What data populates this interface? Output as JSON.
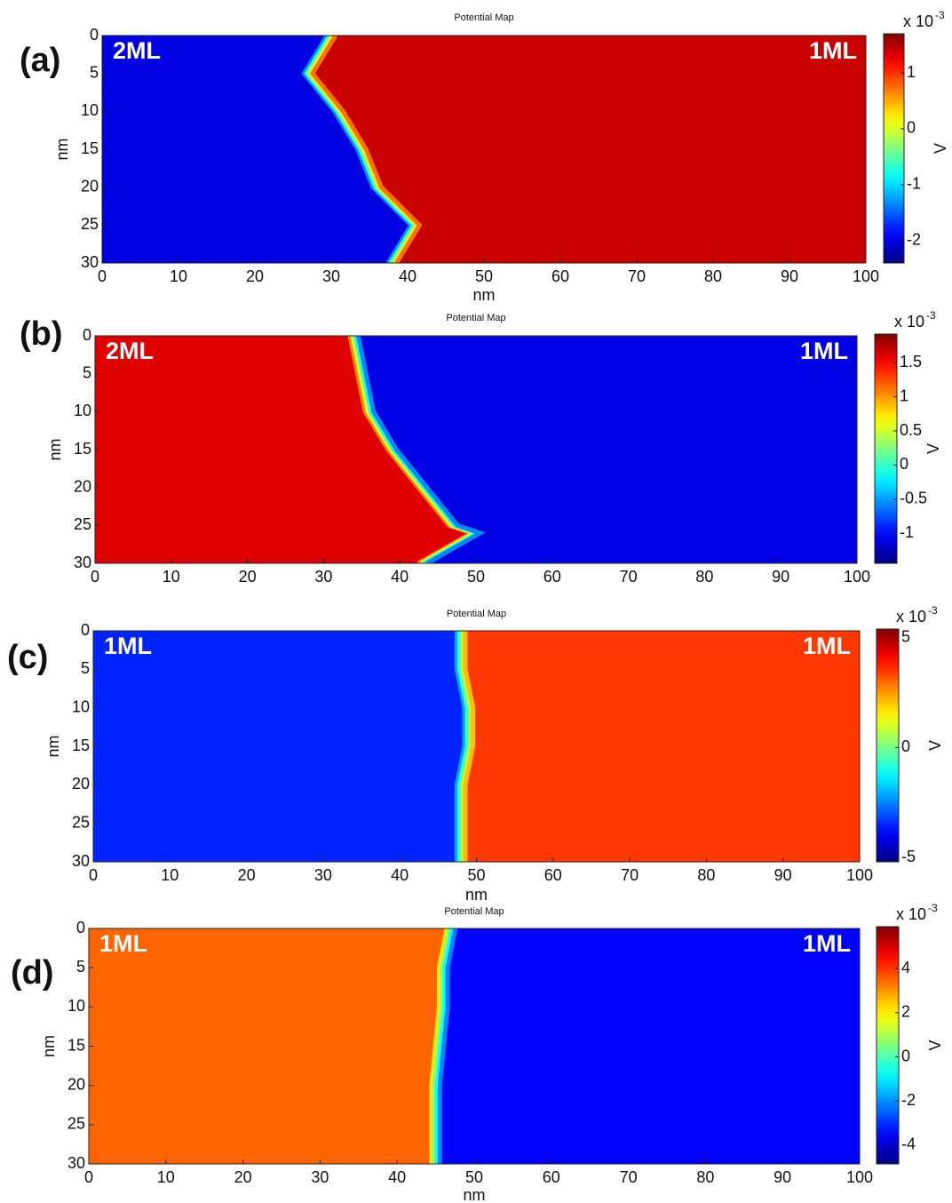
{
  "chart_data": [
    {
      "type": "heatmap",
      "panel_label": "(a)",
      "title": "Potential Map",
      "xlabel": "nm",
      "ylabel": "nm",
      "xlim": [
        0,
        100
      ],
      "xticks": [
        0,
        10,
        20,
        30,
        40,
        50,
        60,
        70,
        80,
        90,
        100
      ],
      "ylim": [
        0,
        30
      ],
      "yreverse": true,
      "yticks": [
        0,
        5,
        10,
        15,
        20,
        25,
        30
      ],
      "colormap": "jet",
      "clim": [
        -2.4,
        1.7
      ],
      "cticks": [
        -2,
        -1,
        0,
        1
      ],
      "colorbar_label": "V",
      "colorbar_scale": "x 10",
      "colorbar_exponent": "-3",
      "left_label": "2ML",
      "right_label": "1ML",
      "left_value": -2,
      "right_value": 1.4,
      "boundary_y": [
        0,
        5,
        10,
        15,
        20,
        25,
        30
      ],
      "boundary_x": [
        30,
        27,
        31,
        34,
        36,
        41,
        38
      ]
    },
    {
      "type": "heatmap",
      "panel_label": "(b)",
      "title": "Potential Map",
      "ylabel": "nm",
      "xlim": [
        0,
        100
      ],
      "xticks": [
        0,
        10,
        20,
        30,
        40,
        50,
        60,
        70,
        80,
        90,
        100
      ],
      "ylim": [
        0,
        30
      ],
      "yreverse": true,
      "yticks": [
        0,
        5,
        10,
        15,
        20,
        25,
        30
      ],
      "colormap": "jet",
      "clim": [
        -1.44,
        1.92
      ],
      "cticks": [
        -1,
        -0.5,
        0,
        0.5,
        1,
        1.5
      ],
      "colorbar_label": "V",
      "colorbar_scale": "x 10",
      "colorbar_exponent": "-3",
      "left_label": "2ML",
      "right_label": "1ML",
      "left_value": 1.6,
      "right_value": -1.1,
      "boundary_y": [
        0,
        5,
        10,
        15,
        20,
        25,
        26,
        30
      ],
      "boundary_x": [
        34,
        35,
        36,
        39,
        43,
        47,
        50,
        43
      ]
    },
    {
      "type": "heatmap",
      "panel_label": "(c)",
      "title": "Potential Map",
      "xlabel": "nm",
      "ylabel": "nm",
      "xlim": [
        0,
        100
      ],
      "xticks": [
        0,
        10,
        20,
        30,
        40,
        50,
        60,
        70,
        80,
        90,
        100
      ],
      "ylim": [
        0,
        30
      ],
      "yreverse": true,
      "yticks": [
        0,
        5,
        10,
        15,
        20,
        25,
        30
      ],
      "colormap": "jet",
      "clim": [
        -5.2,
        5.4
      ],
      "cticks": [
        -5,
        0,
        5
      ],
      "colorbar_label": "V",
      "colorbar_scale": "x 10",
      "colorbar_exponent": "-3",
      "left_label": "1ML",
      "right_label": "1ML",
      "left_value": -3.5,
      "right_value": 3.5,
      "boundary_y": [
        0,
        5,
        10,
        15,
        20,
        25,
        30
      ],
      "boundary_x": [
        48,
        48,
        49,
        49,
        48,
        48,
        48
      ]
    },
    {
      "type": "heatmap",
      "panel_label": "(d)",
      "title": "Potential Map",
      "xlabel": "nm",
      "ylabel": "nm",
      "xlim": [
        0,
        100
      ],
      "xticks": [
        0,
        10,
        20,
        30,
        40,
        50,
        60,
        70,
        80,
        90,
        100
      ],
      "ylim": [
        0,
        30
      ],
      "yreverse": true,
      "yticks": [
        0,
        5,
        10,
        15,
        20,
        25,
        30
      ],
      "colormap": "jet",
      "clim": [
        -4.85,
        5.9
      ],
      "cticks": [
        -4,
        -2,
        0,
        2,
        4
      ],
      "colorbar_label": "V",
      "colorbar_scale": "x 10",
      "colorbar_exponent": "-3",
      "left_label": "1ML",
      "right_label": "1ML",
      "left_value": 3.5,
      "right_value": -3.5,
      "boundary_y": [
        0,
        5,
        10,
        15,
        20,
        25,
        30
      ],
      "boundary_x": [
        47,
        46,
        46,
        45.5,
        45,
        45,
        45
      ]
    }
  ]
}
